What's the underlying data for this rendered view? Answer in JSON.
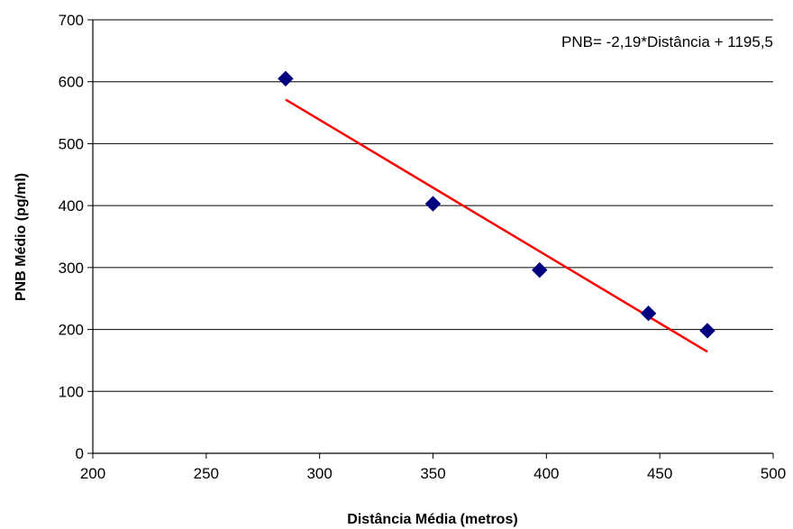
{
  "chart_data": {
    "type": "scatter",
    "title": "",
    "xlabel": "Distância Média (metros)",
    "ylabel": "PNB Médio (pg/ml)",
    "xlim": [
      200,
      500
    ],
    "ylim": [
      0,
      700
    ],
    "x_ticks": [
      "200",
      "250",
      "300",
      "350",
      "400",
      "450",
      "500"
    ],
    "y_ticks": [
      "0",
      "100",
      "200",
      "300",
      "400",
      "500",
      "600",
      "700"
    ],
    "grid": "horizontal",
    "series": [
      {
        "x": [
          285,
          350,
          397,
          445,
          471
        ],
        "y": [
          605,
          403,
          296,
          226,
          198
        ],
        "color": "#00007f",
        "marker": "diamond"
      }
    ],
    "trendline": {
      "slope": -2.19,
      "intercept": 1195.5,
      "x_range": [
        285,
        471
      ],
      "color": "#ff0000"
    },
    "annotation": "PNB= -2,19*Distância + 1195,5"
  }
}
